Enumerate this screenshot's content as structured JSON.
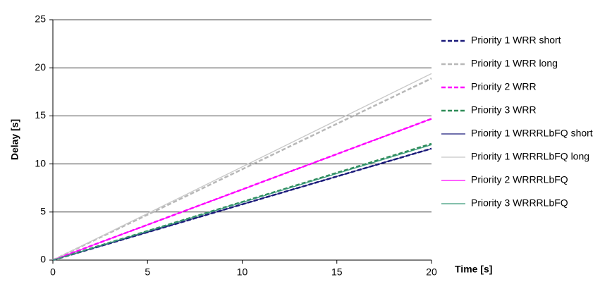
{
  "chart_data": {
    "type": "line",
    "x_label": "Time [s]",
    "y_label": "Delay [s]",
    "x": [
      0,
      20
    ],
    "xlim": [
      0,
      20
    ],
    "xticks": [
      0,
      5,
      10,
      15,
      20
    ],
    "ylim": [
      0,
      25
    ],
    "yticks": [
      0,
      5,
      10,
      15,
      20,
      25
    ],
    "grid": true,
    "legend": "right",
    "series": [
      {
        "name": "Priority 1 WRR short",
        "color": "#1a1a7a",
        "dashed": true,
        "values": [
          0,
          11.6
        ]
      },
      {
        "name": "Priority 1 WRR long",
        "color": "#b8b8b8",
        "dashed": true,
        "values": [
          0,
          18.9
        ]
      },
      {
        "name": "Priority 2 WRR",
        "color": "#ff00ff",
        "dashed": true,
        "values": [
          0,
          14.7
        ]
      },
      {
        "name": "Priority 3 WRR",
        "color": "#2e8b57",
        "dashed": true,
        "values": [
          0,
          12.1
        ]
      },
      {
        "name": "Priority 1 WRRRLbFQ short",
        "color": "#1a1a7a",
        "dashed": false,
        "values": [
          0,
          11.6
        ]
      },
      {
        "name": "Priority 1 WRRRLbFQ long",
        "color": "#c8c8c8",
        "dashed": false,
        "values": [
          0,
          19.4
        ]
      },
      {
        "name": "Priority 2 WRRRLbFQ",
        "color": "#ff00ff",
        "dashed": false,
        "values": [
          0,
          14.7
        ]
      },
      {
        "name": "Priority 3 WRRRLbFQ",
        "color": "#3a9a7a",
        "dashed": false,
        "values": [
          0,
          12.0
        ]
      }
    ]
  }
}
